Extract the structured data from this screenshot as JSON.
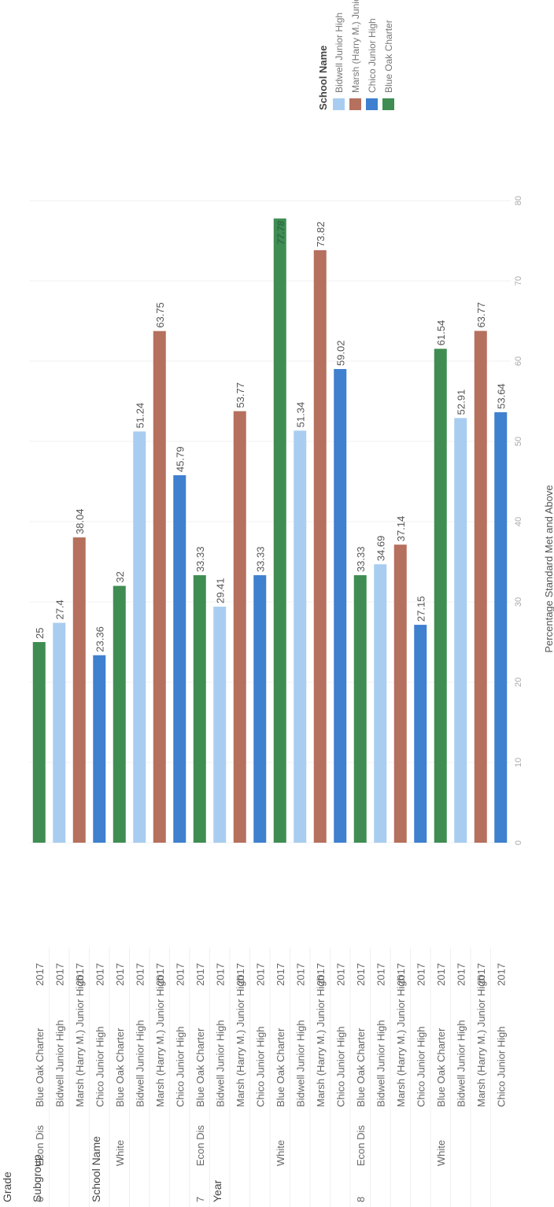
{
  "headers": {
    "grade": "Grade",
    "subgroup": "Subgroup",
    "school": "School Name",
    "year": "Year"
  },
  "legend": {
    "title": "School Name",
    "items": [
      {
        "name": "Bidwell Junior High",
        "color": "#a9cdf0"
      },
      {
        "name": "Marsh (Harry M.) Junior High",
        "color": "#b6705e"
      },
      {
        "name": "Chico Junior High",
        "color": "#3f80cf"
      },
      {
        "name": "Blue Oak Charter",
        "color": "#3f8d52"
      }
    ]
  },
  "chart_data": {
    "type": "bar",
    "orientation": "horizontal",
    "xlabel": "Percentage Standard Met and Above",
    "ylabel": "",
    "xlim": [
      0,
      80
    ],
    "xticks": [
      0,
      10,
      20,
      30,
      40,
      50,
      60,
      70,
      80
    ],
    "grid": true,
    "legend_position": "right",
    "rows": [
      {
        "grade": "6",
        "subgroup": "Econ Dis",
        "school": "Blue Oak Charter",
        "year": "2017",
        "value": 25,
        "label": "25"
      },
      {
        "grade": "",
        "subgroup": "",
        "school": "Bidwell Junior High",
        "year": "2017",
        "value": 27.4,
        "label": "27.4"
      },
      {
        "grade": "",
        "subgroup": "",
        "school": "Marsh (Harry M.) Junior High",
        "year": "2017",
        "value": 38.04,
        "label": "38.04"
      },
      {
        "grade": "",
        "subgroup": "",
        "school": "Chico Junior High",
        "year": "2017",
        "value": 23.36,
        "label": "23.36"
      },
      {
        "grade": "",
        "subgroup": "White",
        "school": "Blue Oak Charter",
        "year": "2017",
        "value": 32,
        "label": "32"
      },
      {
        "grade": "",
        "subgroup": "",
        "school": "Bidwell Junior High",
        "year": "2017",
        "value": 51.24,
        "label": "51.24"
      },
      {
        "grade": "",
        "subgroup": "",
        "school": "Marsh (Harry M.) Junior High",
        "year": "2017",
        "value": 63.75,
        "label": "63.75"
      },
      {
        "grade": "",
        "subgroup": "",
        "school": "Chico Junior High",
        "year": "2017",
        "value": 45.79,
        "label": "45.79"
      },
      {
        "grade": "7",
        "subgroup": "Econ Dis",
        "school": "Blue Oak Charter",
        "year": "2017",
        "value": 33.33,
        "label": "33.33"
      },
      {
        "grade": "",
        "subgroup": "",
        "school": "Bidwell Junior High",
        "year": "2017",
        "value": 29.41,
        "label": "29.41"
      },
      {
        "grade": "",
        "subgroup": "",
        "school": "Marsh (Harry M.) Junior High",
        "year": "2017",
        "value": 53.77,
        "label": "53.77"
      },
      {
        "grade": "",
        "subgroup": "",
        "school": "Chico Junior High",
        "year": "2017",
        "value": 33.33,
        "label": "33.33"
      },
      {
        "grade": "",
        "subgroup": "White",
        "school": "Blue Oak Charter",
        "year": "2017",
        "value": 77.78,
        "label": "77.78"
      },
      {
        "grade": "",
        "subgroup": "",
        "school": "Bidwell Junior High",
        "year": "2017",
        "value": 51.34,
        "label": "51.34"
      },
      {
        "grade": "",
        "subgroup": "",
        "school": "Marsh (Harry M.) Junior High",
        "year": "2017",
        "value": 73.82,
        "label": "73.82"
      },
      {
        "grade": "",
        "subgroup": "",
        "school": "Chico Junior High",
        "year": "2017",
        "value": 59.02,
        "label": "59.02"
      },
      {
        "grade": "8",
        "subgroup": "Econ Dis",
        "school": "Blue Oak Charter",
        "year": "2017",
        "value": 33.33,
        "label": "33.33"
      },
      {
        "grade": "",
        "subgroup": "",
        "school": "Bidwell Junior High",
        "year": "2017",
        "value": 34.69,
        "label": "34.69"
      },
      {
        "grade": "",
        "subgroup": "",
        "school": "Marsh (Harry M.) Junior High",
        "year": "2017",
        "value": 37.14,
        "label": "37.14"
      },
      {
        "grade": "",
        "subgroup": "",
        "school": "Chico Junior High",
        "year": "2017",
        "value": 27.15,
        "label": "27.15"
      },
      {
        "grade": "",
        "subgroup": "White",
        "school": "Blue Oak Charter",
        "year": "2017",
        "value": 61.54,
        "label": "61.54"
      },
      {
        "grade": "",
        "subgroup": "",
        "school": "Bidwell Junior High",
        "year": "2017",
        "value": 52.91,
        "label": "52.91"
      },
      {
        "grade": "",
        "subgroup": "",
        "school": "Marsh (Harry M.) Junior High",
        "year": "2017",
        "value": 63.77,
        "label": "63.77"
      },
      {
        "grade": "",
        "subgroup": "",
        "school": "Chico Junior High",
        "year": "2017",
        "value": 53.64,
        "label": "53.64"
      }
    ]
  }
}
